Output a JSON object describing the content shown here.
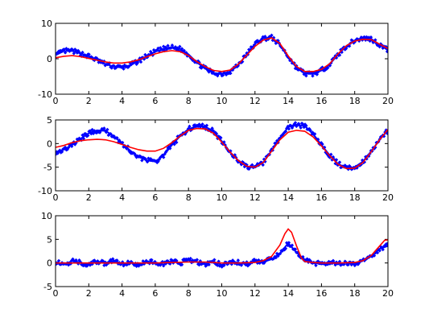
{
  "chart_data": [
    {
      "type": "line",
      "xlim": [
        0,
        20
      ],
      "ylim": [
        -10,
        10
      ],
      "xticks": [
        "0",
        "2",
        "4",
        "6",
        "8",
        "10",
        "12",
        "14",
        "16",
        "18",
        "20"
      ],
      "yticks": [
        "10",
        "0",
        "-10"
      ],
      "series": [
        {
          "kind": "scatter",
          "color": "#0000ff",
          "marker": "diamond",
          "x": [
            0,
            0.5,
            1,
            1.5,
            2,
            2.5,
            3,
            3.5,
            4,
            4.5,
            5,
            5.5,
            6,
            6.5,
            7,
            7.5,
            8,
            8.5,
            9,
            9.5,
            10,
            10.5,
            11,
            11.5,
            12,
            12.5,
            13,
            13.5,
            14,
            14.5,
            15,
            15.5,
            16,
            16.5,
            17,
            17.5,
            18,
            18.5,
            19,
            19.5,
            20
          ],
          "y": [
            1.0,
            2.2,
            2.2,
            1.5,
            0.7,
            -0.4,
            -1.5,
            -2.2,
            -2.5,
            -1.8,
            -0.6,
            0.8,
            2.0,
            2.8,
            3.2,
            2.8,
            1.2,
            -1.0,
            -2.8,
            -4.0,
            -4.3,
            -3.6,
            -1.7,
            1.2,
            4.2,
            5.8,
            6.0,
            4.0,
            0.6,
            -2.5,
            -4.2,
            -4.3,
            -3.3,
            -1.5,
            1.2,
            3.6,
            5.2,
            5.8,
            5.6,
            4.0,
            2.4
          ]
        },
        {
          "kind": "line",
          "color": "#ff0000",
          "x": [
            0,
            0.5,
            1,
            1.5,
            2,
            2.5,
            3,
            3.5,
            4,
            4.5,
            5,
            5.5,
            6,
            6.5,
            7,
            7.5,
            8,
            8.5,
            9,
            9.5,
            10,
            10.5,
            11,
            11.5,
            12,
            12.5,
            13,
            13.5,
            14,
            14.5,
            15,
            15.5,
            16,
            16.5,
            17,
            17.5,
            18,
            18.5,
            19,
            19.5,
            20
          ],
          "y": [
            0.3,
            0.7,
            0.9,
            0.6,
            0.1,
            -0.4,
            -0.9,
            -1.2,
            -1.2,
            -0.9,
            -0.3,
            0.6,
            1.4,
            2.0,
            2.3,
            2.0,
            0.9,
            -0.8,
            -2.2,
            -3.3,
            -3.6,
            -3.2,
            -1.5,
            1.0,
            3.5,
            5.3,
            5.9,
            4.3,
            0.8,
            -2.2,
            -3.6,
            -3.6,
            -3.0,
            -1.4,
            1.4,
            3.7,
            5.0,
            5.5,
            5.4,
            4.1,
            2.9
          ]
        }
      ]
    },
    {
      "type": "line",
      "xlim": [
        0,
        20
      ],
      "ylim": [
        -10,
        5
      ],
      "xticks": [
        "0",
        "2",
        "4",
        "6",
        "8",
        "10",
        "12",
        "14",
        "16",
        "18",
        "20"
      ],
      "yticks": [
        "5",
        "0",
        "-5",
        "-10"
      ],
      "series": [
        {
          "kind": "scatter",
          "color": "#0000ff",
          "marker": "diamond",
          "x": [
            0,
            0.5,
            1,
            1.5,
            2,
            2.5,
            3,
            3.5,
            4,
            4.5,
            5,
            5.5,
            6,
            6.5,
            7,
            7.5,
            8,
            8.5,
            9,
            9.5,
            10,
            10.5,
            11,
            11.5,
            12,
            12.5,
            13,
            13.5,
            14,
            14.5,
            15,
            15.5,
            16,
            16.5,
            17,
            17.5,
            18,
            18.5,
            19,
            19.5,
            20
          ],
          "y": [
            -1.8,
            -1.3,
            -0.3,
            1.0,
            2.2,
            2.8,
            2.7,
            1.6,
            0.0,
            -1.5,
            -2.8,
            -3.6,
            -3.8,
            -2.5,
            -0.3,
            1.6,
            3.1,
            3.6,
            3.6,
            2.6,
            0.5,
            -1.8,
            -3.6,
            -4.9,
            -5.1,
            -4.0,
            -1.5,
            1.2,
            3.5,
            4.0,
            3.7,
            2.0,
            -0.3,
            -2.5,
            -4.3,
            -5.2,
            -5.0,
            -3.8,
            -1.6,
            0.8,
            2.8
          ]
        },
        {
          "kind": "line",
          "color": "#ff0000",
          "x": [
            0,
            0.5,
            1,
            1.5,
            2,
            2.5,
            3,
            3.5,
            4,
            4.5,
            5,
            5.5,
            6,
            6.5,
            7,
            7.5,
            8,
            8.5,
            9,
            9.5,
            10,
            10.5,
            11,
            11.5,
            12,
            12.5,
            13,
            13.5,
            14,
            14.5,
            15,
            15.5,
            16,
            16.5,
            17,
            17.5,
            18,
            18.5,
            19,
            19.5,
            20
          ],
          "y": [
            -0.8,
            -0.4,
            0.2,
            0.6,
            0.8,
            0.9,
            0.8,
            0.4,
            -0.2,
            -0.8,
            -1.3,
            -1.6,
            -1.6,
            -1.0,
            0.2,
            1.6,
            2.8,
            3.2,
            3.1,
            2.2,
            0.3,
            -1.8,
            -3.6,
            -4.8,
            -5.0,
            -4.0,
            -1.6,
            0.8,
            2.4,
            2.8,
            2.6,
            1.4,
            -0.5,
            -2.6,
            -4.4,
            -5.3,
            -5.2,
            -4.0,
            -1.7,
            0.8,
            3.0
          ]
        }
      ]
    },
    {
      "type": "line",
      "xlim": [
        0,
        20
      ],
      "ylim": [
        -5,
        10
      ],
      "xticks": [
        "0",
        "2",
        "4",
        "6",
        "8",
        "10",
        "12",
        "14",
        "16",
        "18",
        "20"
      ],
      "yticks": [
        "10",
        "5",
        "0",
        "-5"
      ],
      "series": [
        {
          "kind": "scatter",
          "color": "#0000ff",
          "marker": "diamond",
          "x": [
            0,
            0.5,
            1,
            1.5,
            2,
            2.5,
            3,
            3.5,
            4,
            4.5,
            5,
            5.5,
            6,
            6.5,
            7,
            7.5,
            8,
            8.5,
            9,
            9.5,
            10,
            10.5,
            11,
            11.5,
            12,
            12.5,
            13,
            13.5,
            14,
            14.5,
            15,
            15.5,
            16,
            16.5,
            17,
            17.5,
            18,
            18.5,
            19,
            19.5,
            20
          ],
          "y": [
            0.2,
            -0.3,
            0.4,
            0.1,
            -0.4,
            0.3,
            -0.1,
            0.5,
            -0.2,
            0.2,
            -0.5,
            0.3,
            0.1,
            -0.3,
            0.4,
            0.0,
            0.6,
            0.2,
            -0.2,
            0.3,
            -0.4,
            0.2,
            0.1,
            -0.3,
            0.4,
            0.2,
            0.8,
            2.0,
            4.2,
            2.2,
            0.7,
            0.1,
            -0.3,
            0.3,
            -0.2,
            0.1,
            -0.3,
            0.6,
            1.5,
            3.0,
            3.6
          ]
        },
        {
          "kind": "line",
          "color": "#ff0000",
          "x": [
            0,
            1,
            2,
            3,
            4,
            5,
            6,
            7,
            8,
            9,
            10,
            11,
            12,
            12.5,
            13,
            13.5,
            13.8,
            14,
            14.2,
            14.5,
            14.8,
            15,
            15.5,
            16,
            17,
            18,
            18.5,
            19,
            19.5,
            19.8,
            20
          ],
          "y": [
            0,
            0,
            0,
            0,
            0,
            0,
            0,
            0.1,
            0.2,
            0.2,
            0,
            0,
            0.1,
            0.5,
            1.4,
            3.8,
            6.2,
            7.2,
            6.5,
            3.6,
            1.0,
            0.3,
            0.1,
            0,
            0,
            0.1,
            0.5,
            1.6,
            3.6,
            4.8,
            4.9
          ]
        }
      ]
    }
  ]
}
